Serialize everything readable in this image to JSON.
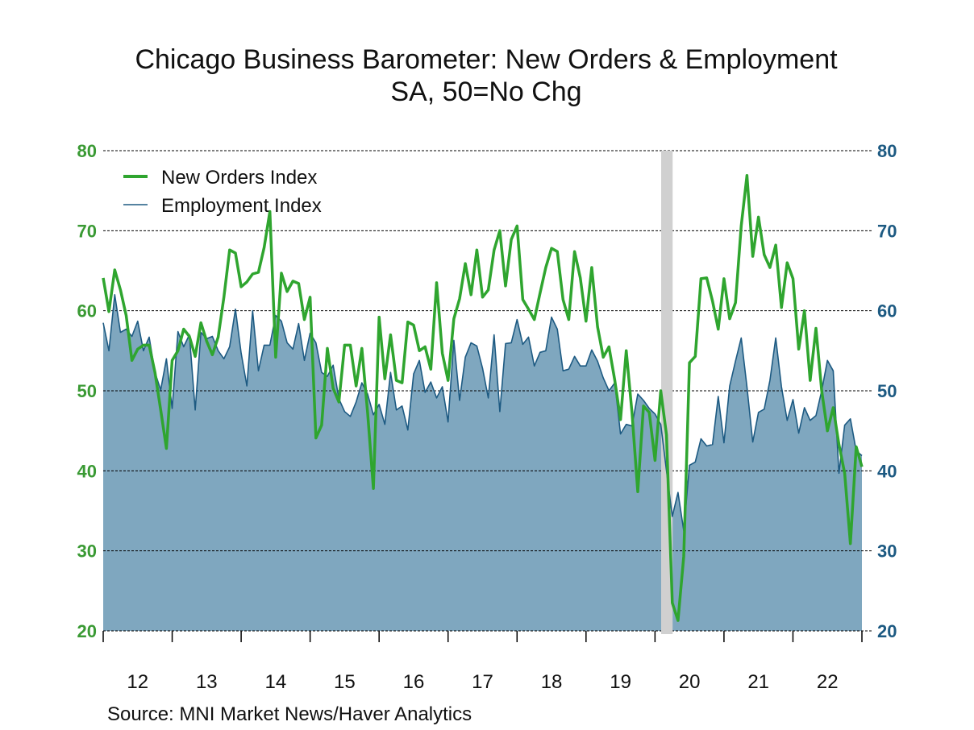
{
  "chart_data": {
    "type": "line",
    "title": "Chicago Business Barometer: New Orders & Employment",
    "subtitle": "SA, 50=No Chg",
    "source": "Source:  MNI Market News/Haver Analytics",
    "frequency": "monthly",
    "x_start": "2012-01",
    "x_end": "2023-01",
    "x_tick_labels": [
      "12",
      "13",
      "14",
      "15",
      "16",
      "17",
      "18",
      "19",
      "20",
      "21",
      "22"
    ],
    "y_left": {
      "ticks": [
        "20",
        "30",
        "40",
        "50",
        "60",
        "70",
        "80"
      ],
      "range": [
        20,
        80
      ],
      "color": "#3a9a34"
    },
    "y_right": {
      "ticks": [
        "20",
        "30",
        "40",
        "50",
        "60",
        "70",
        "80"
      ],
      "range": [
        20,
        80
      ],
      "color": "#1d5a82"
    },
    "grid": "horizontal dashed",
    "legend_position": "top-left",
    "recession_shading": {
      "start": "2020-02",
      "end": "2020-04",
      "color": "#d0d0d0"
    },
    "series": [
      {
        "name": "New Orders Index",
        "style": "line",
        "color": "#2fa52f",
        "values": [
          64.1,
          59.9,
          65.1,
          62.6,
          59.4,
          53.8,
          55.2,
          55.7,
          55.7,
          52.3,
          47.6,
          42.8,
          53.8,
          55,
          57.7,
          56.8,
          54.3,
          58.5,
          56.2,
          54.5,
          56.7,
          61.7,
          67.6,
          67.2,
          63,
          63.6,
          64.6,
          64.8,
          67.9,
          72.4,
          54.2,
          64.7,
          62.4,
          63.7,
          63.4,
          58.9,
          61.7,
          44.1,
          45.7,
          55.3,
          50.3,
          48.6,
          55.7,
          55.7,
          50.6,
          55.3,
          47.3,
          37.8,
          59.2,
          51.5,
          57,
          51.3,
          51,
          58.6,
          58.2,
          55,
          55.5,
          52.7,
          63.5,
          54.7,
          51.3,
          59,
          61.5,
          65.9,
          62,
          67.6,
          61.7,
          62.6,
          67.6,
          70,
          63.1,
          68.9,
          70.6,
          61.4,
          60.2,
          58.9,
          62.2,
          65.4,
          67.8,
          67.4,
          61.4,
          58.9,
          67.4,
          64.1,
          58.7,
          65.4,
          58,
          54.2,
          55.5,
          51.3,
          46.4,
          55,
          47.3,
          37.4,
          48.1,
          47.3,
          41.3,
          50,
          44.5,
          23.5,
          21.3,
          29.3,
          53.5,
          54.3,
          64,
          64.1,
          61.2,
          57.7,
          64,
          59,
          61,
          70.6,
          76.9,
          66.8,
          71.7,
          67,
          65.4,
          68.2,
          60.4,
          66,
          64,
          55.2,
          60,
          51.3,
          57.8,
          50,
          45,
          47.9,
          43.3,
          39.7,
          30.9,
          43,
          40.5
        ]
      },
      {
        "name": "Employment Index",
        "style": "area",
        "color": "#1d5a82",
        "fill": "#7fa7bf",
        "values": [
          58.5,
          55,
          62,
          57.3,
          57.7,
          56.8,
          58.7,
          55,
          56.7,
          52.3,
          50.1,
          54,
          47.8,
          57.4,
          55.5,
          57,
          47.6,
          57.3,
          56.5,
          56.8,
          55,
          54,
          55.5,
          60.2,
          54.7,
          50.6,
          60,
          52.5,
          55.7,
          55.7,
          59.4,
          58.7,
          56,
          55.2,
          58.4,
          53.8,
          57.2,
          56,
          52.3,
          51.8,
          53.2,
          49,
          47.4,
          46.8,
          48.6,
          51,
          49.6,
          47,
          48.3,
          45.8,
          52.3,
          47.6,
          48.1,
          45.1,
          52.1,
          53.8,
          49.8,
          51.1,
          49.1,
          50.5,
          46.1,
          56.3,
          48.8,
          54.2,
          56,
          55.6,
          52.8,
          49.1,
          57,
          47.4,
          55.9,
          56,
          58.9,
          55.8,
          56.7,
          53.1,
          54.8,
          55,
          59.2,
          57.7,
          52.5,
          52.7,
          54.3,
          53.1,
          53.1,
          55.1,
          53.7,
          51.6,
          50,
          51,
          44.6,
          45.8,
          45.6,
          49.6,
          48.8,
          47.8,
          47.1,
          45.8,
          40,
          34.3,
          37.3,
          32.5,
          40.7,
          41.1,
          44,
          43.1,
          43.3,
          49.3,
          43.5,
          50.6,
          53.7,
          56.6,
          50.5,
          43.6,
          47.3,
          47.7,
          51.3,
          56.6,
          50.5,
          46.3,
          48.9,
          44.7,
          47.9,
          46.3,
          46.9,
          50,
          53.8,
          52.5,
          39.7,
          45.7,
          46.5,
          42.5,
          41.9
        ]
      }
    ]
  }
}
